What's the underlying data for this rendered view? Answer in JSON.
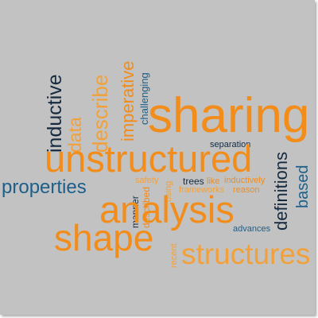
{
  "palette": {
    "background": "#c2c2c2",
    "orange": "#f28c1a",
    "orange_light": "#f2a13a",
    "navy": "#152a3f",
    "teal": "#1c5f8a"
  },
  "words": {
    "sharing": "sharing",
    "unstructured": "unstructured",
    "analysis": "analysis",
    "shape": "shape",
    "structures": "structures",
    "properties": "properties",
    "inductive": "inductive",
    "data": "data",
    "describe": "describe",
    "imperative": "imperative",
    "challenging": "challenging",
    "separation": "separation",
    "definitions": "definitions",
    "based": "based",
    "safety": "safety",
    "using": "using",
    "trees": "trees",
    "like": "like",
    "inductively": "inductively",
    "frameworks": "frameworks",
    "reason": "reason",
    "manner": "manner",
    "described": "described",
    "advances": "advances",
    "recent": "recent"
  }
}
